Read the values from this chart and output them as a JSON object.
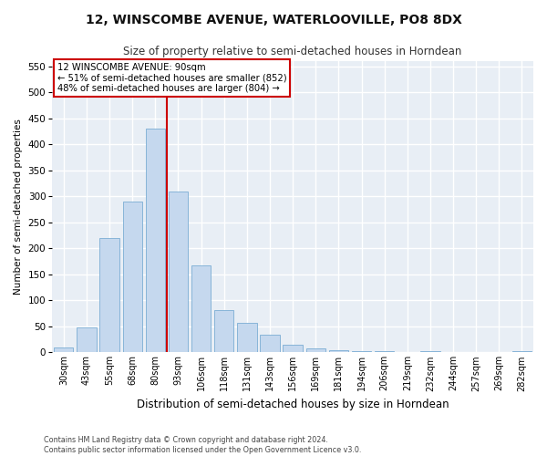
{
  "title": "12, WINSCOMBE AVENUE, WATERLOOVILLE, PO8 8DX",
  "subtitle": "Size of property relative to semi-detached houses in Horndean",
  "xlabel": "Distribution of semi-detached houses by size in Horndean",
  "ylabel": "Number of semi-detached properties",
  "bar_color": "#c5d8ee",
  "bar_edge_color": "#7aadd4",
  "categories": [
    "30sqm",
    "43sqm",
    "55sqm",
    "68sqm",
    "80sqm",
    "93sqm",
    "106sqm",
    "118sqm",
    "131sqm",
    "143sqm",
    "156sqm",
    "169sqm",
    "181sqm",
    "194sqm",
    "206sqm",
    "219sqm",
    "232sqm",
    "244sqm",
    "257sqm",
    "269sqm",
    "282sqm"
  ],
  "values": [
    10,
    48,
    220,
    290,
    430,
    310,
    168,
    82,
    57,
    34,
    15,
    7,
    4,
    2,
    3,
    0,
    2,
    0,
    1,
    0,
    2
  ],
  "ylim": [
    0,
    560
  ],
  "yticks": [
    0,
    50,
    100,
    150,
    200,
    250,
    300,
    350,
    400,
    450,
    500,
    550
  ],
  "vline_index": 4.5,
  "annotation_title": "12 WINSCOMBE AVENUE: 90sqm",
  "annotation_line1": "← 51% of semi-detached houses are smaller (852)",
  "annotation_line2": "48% of semi-detached houses are larger (804) →",
  "vline_color": "#cc0000",
  "annotation_box_color": "#ffffff",
  "annotation_box_edge": "#cc0000",
  "footer_line1": "Contains HM Land Registry data © Crown copyright and database right 2024.",
  "footer_line2": "Contains public sector information licensed under the Open Government Licence v3.0.",
  "fig_bg_color": "#ffffff",
  "plot_bg_color": "#e8eef5",
  "grid_color": "#ffffff"
}
